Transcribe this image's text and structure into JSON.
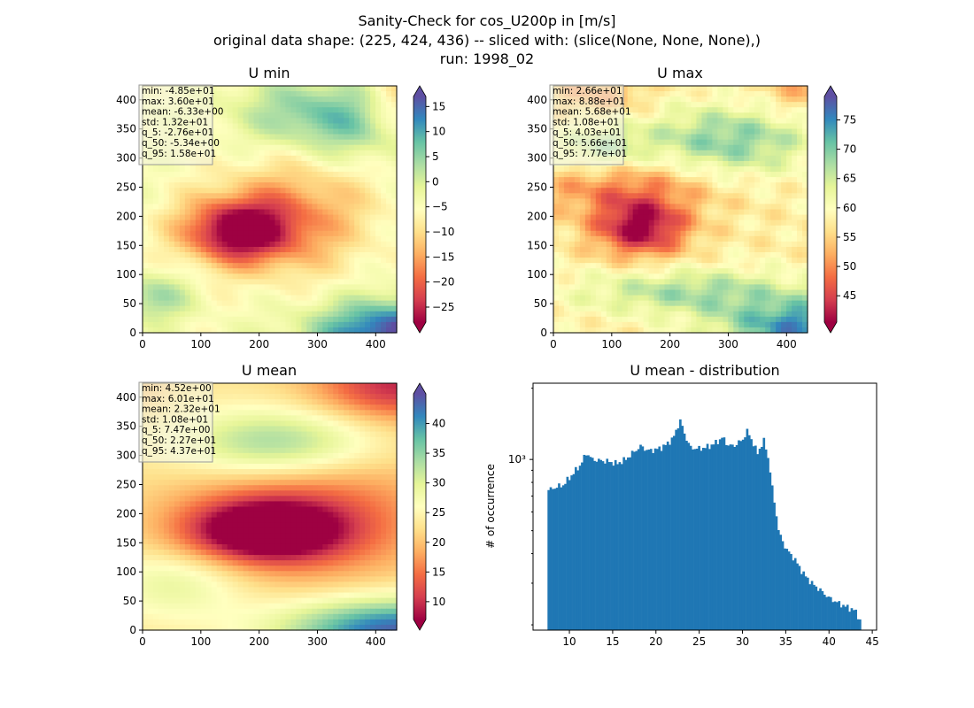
{
  "figure": {
    "title_lines": [
      "Sanity-Check for cos_U200p in [m/s]",
      "original data shape: (225, 424, 436) -- sliced with: (slice(None, None, None),)",
      "run: 1998_02"
    ]
  },
  "colors": {
    "histogram_bar": "#1f77b4",
    "cmap_spectral": [
      "#9e0142",
      "#d53e4f",
      "#f46d43",
      "#fdae61",
      "#fee08b",
      "#ffffbf",
      "#e6f598",
      "#abdda4",
      "#66c2a5",
      "#3288bd",
      "#5e4fa2"
    ]
  },
  "chart_data": [
    {
      "type": "heatmap",
      "title": "U min",
      "colormap": "Spectral",
      "x_ticks": [
        "0",
        "100",
        "200",
        "300",
        "400"
      ],
      "y_ticks": [
        "0",
        "50",
        "100",
        "150",
        "200",
        "250",
        "300",
        "350",
        "400"
      ],
      "xlim": [
        0,
        436
      ],
      "ylim": [
        0,
        424
      ],
      "colorbar": {
        "vmin": -28,
        "vmax": 17,
        "ticks": [
          "15",
          "10",
          "5",
          "0",
          "−5",
          "−10",
          "−15",
          "−20",
          "−25"
        ]
      },
      "stats": [
        "min: -4.85e+01",
        "max: 3.60e+01",
        "mean: -6.33e+00",
        "std: 1.32e+01",
        "q_5: -2.76e+01",
        "q_50: -5.34e+00",
        "q_95: 1.58e+01"
      ]
    },
    {
      "type": "heatmap",
      "title": "U max",
      "colormap": "Spectral",
      "x_ticks": [
        "0",
        "100",
        "200",
        "300",
        "400"
      ],
      "y_ticks": [
        "0",
        "50",
        "100",
        "150",
        "200",
        "250",
        "300",
        "350",
        "400"
      ],
      "xlim": [
        0,
        436
      ],
      "ylim": [
        0,
        424
      ],
      "colorbar": {
        "vmin": 40.5,
        "vmax": 79,
        "ticks": [
          "75",
          "70",
          "65",
          "60",
          "55",
          "50",
          "45"
        ]
      },
      "stats": [
        "min: 2.66e+01",
        "max: 8.88e+01",
        "mean: 5.68e+01",
        "std: 1.08e+01",
        "q_5: 4.03e+01",
        "q_50: 5.66e+01",
        "q_95: 7.77e+01"
      ]
    },
    {
      "type": "heatmap",
      "title": "U mean",
      "colormap": "Spectral",
      "x_ticks": [
        "0",
        "100",
        "200",
        "300",
        "400"
      ],
      "y_ticks": [
        "0",
        "50",
        "100",
        "150",
        "200",
        "250",
        "300",
        "350",
        "400"
      ],
      "xlim": [
        0,
        436
      ],
      "ylim": [
        0,
        424
      ],
      "colorbar": {
        "vmin": 7,
        "vmax": 45,
        "ticks": [
          "40",
          "35",
          "30",
          "25",
          "20",
          "15",
          "10"
        ]
      },
      "stats": [
        "min: 4.52e+00",
        "max: 6.01e+01",
        "mean: 2.32e+01",
        "std: 1.08e+01",
        "q_5: 7.47e+00",
        "q_50: 2.27e+01",
        "q_95: 4.37e+01"
      ]
    },
    {
      "type": "bar",
      "title": "U mean - distribution",
      "ylabel": "# of occurrence",
      "yscale": "log",
      "ylim": [
        190,
        2100
      ],
      "y_tick_labels": [
        "10³"
      ],
      "xlim": [
        5.8,
        45.5
      ],
      "x_ticks": [
        "10",
        "15",
        "20",
        "25",
        "30",
        "35",
        "40",
        "45"
      ],
      "bin_edges": [
        7.47,
        43.7
      ],
      "bin_count": 150,
      "anchors": [
        [
          7.5,
          740
        ],
        [
          8.3,
          760
        ],
        [
          9.3,
          780
        ],
        [
          10.3,
          860
        ],
        [
          11.3,
          950
        ],
        [
          12.0,
          1070
        ],
        [
          12.6,
          1000
        ],
        [
          13.5,
          990
        ],
        [
          14.5,
          980
        ],
        [
          15.5,
          960
        ],
        [
          16.5,
          1000
        ],
        [
          17.5,
          1080
        ],
        [
          18.3,
          1140
        ],
        [
          19.0,
          1090
        ],
        [
          20.0,
          1100
        ],
        [
          21.0,
          1140
        ],
        [
          22.0,
          1230
        ],
        [
          22.8,
          1460
        ],
        [
          23.4,
          1250
        ],
        [
          24.0,
          1120
        ],
        [
          25.0,
          1110
        ],
        [
          26.0,
          1130
        ],
        [
          27.0,
          1180
        ],
        [
          27.7,
          1240
        ],
        [
          28.3,
          1150
        ],
        [
          29.0,
          1140
        ],
        [
          30.0,
          1210
        ],
        [
          30.6,
          1320
        ],
        [
          31.1,
          1200
        ],
        [
          31.7,
          1060
        ],
        [
          32.5,
          1200
        ],
        [
          33.0,
          1000
        ],
        [
          33.5,
          720
        ],
        [
          34.2,
          490
        ],
        [
          35.0,
          420
        ],
        [
          36.0,
          380
        ],
        [
          37.0,
          330
        ],
        [
          38.0,
          300
        ],
        [
          39.0,
          280
        ],
        [
          40.0,
          260
        ],
        [
          41.0,
          248
        ],
        [
          42.0,
          238
        ],
        [
          43.0,
          230
        ],
        [
          43.7,
          205
        ]
      ]
    }
  ]
}
